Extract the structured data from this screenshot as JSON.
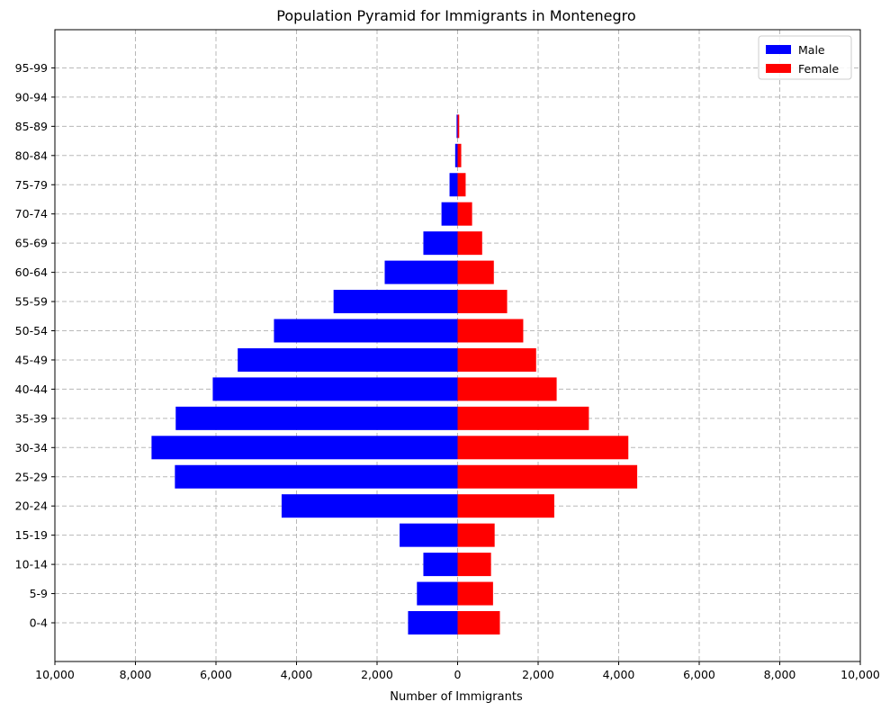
{
  "chart_data": {
    "type": "bar",
    "orientation": "horizontal",
    "title": "Population Pyramid for Immigrants in Montenegro",
    "xlabel": "Number of Immigrants",
    "ylabel": "",
    "xlim": [
      -10000,
      10000
    ],
    "xticks": [
      -10000,
      -8000,
      -6000,
      -4000,
      -2000,
      0,
      2000,
      4000,
      6000,
      8000,
      10000
    ],
    "xtick_labels": [
      "10,000",
      "8,000",
      "6,000",
      "4,000",
      "2,000",
      "0",
      "2,000",
      "4,000",
      "6,000",
      "8,000",
      "10,000"
    ],
    "categories": [
      "0-4",
      "5-9",
      "10-14",
      "15-19",
      "20-24",
      "25-29",
      "30-34",
      "35-39",
      "40-44",
      "45-49",
      "50-54",
      "55-59",
      "60-64",
      "65-69",
      "70-74",
      "75-79",
      "80-84",
      "85-89",
      "90-94",
      "95-99"
    ],
    "grid": true,
    "legend_position": "top-right",
    "series": [
      {
        "name": "Male",
        "color": "#0000ff",
        "values": [
          1230,
          1010,
          850,
          1440,
          4370,
          7020,
          7600,
          7000,
          6080,
          5460,
          4560,
          3080,
          1810,
          850,
          400,
          200,
          60,
          25,
          0,
          0
        ]
      },
      {
        "name": "Female",
        "color": "#ff0000",
        "values": [
          1050,
          880,
          830,
          920,
          2400,
          4460,
          4240,
          3260,
          2460,
          1950,
          1630,
          1230,
          900,
          610,
          360,
          200,
          90,
          40,
          0,
          0
        ]
      }
    ]
  }
}
